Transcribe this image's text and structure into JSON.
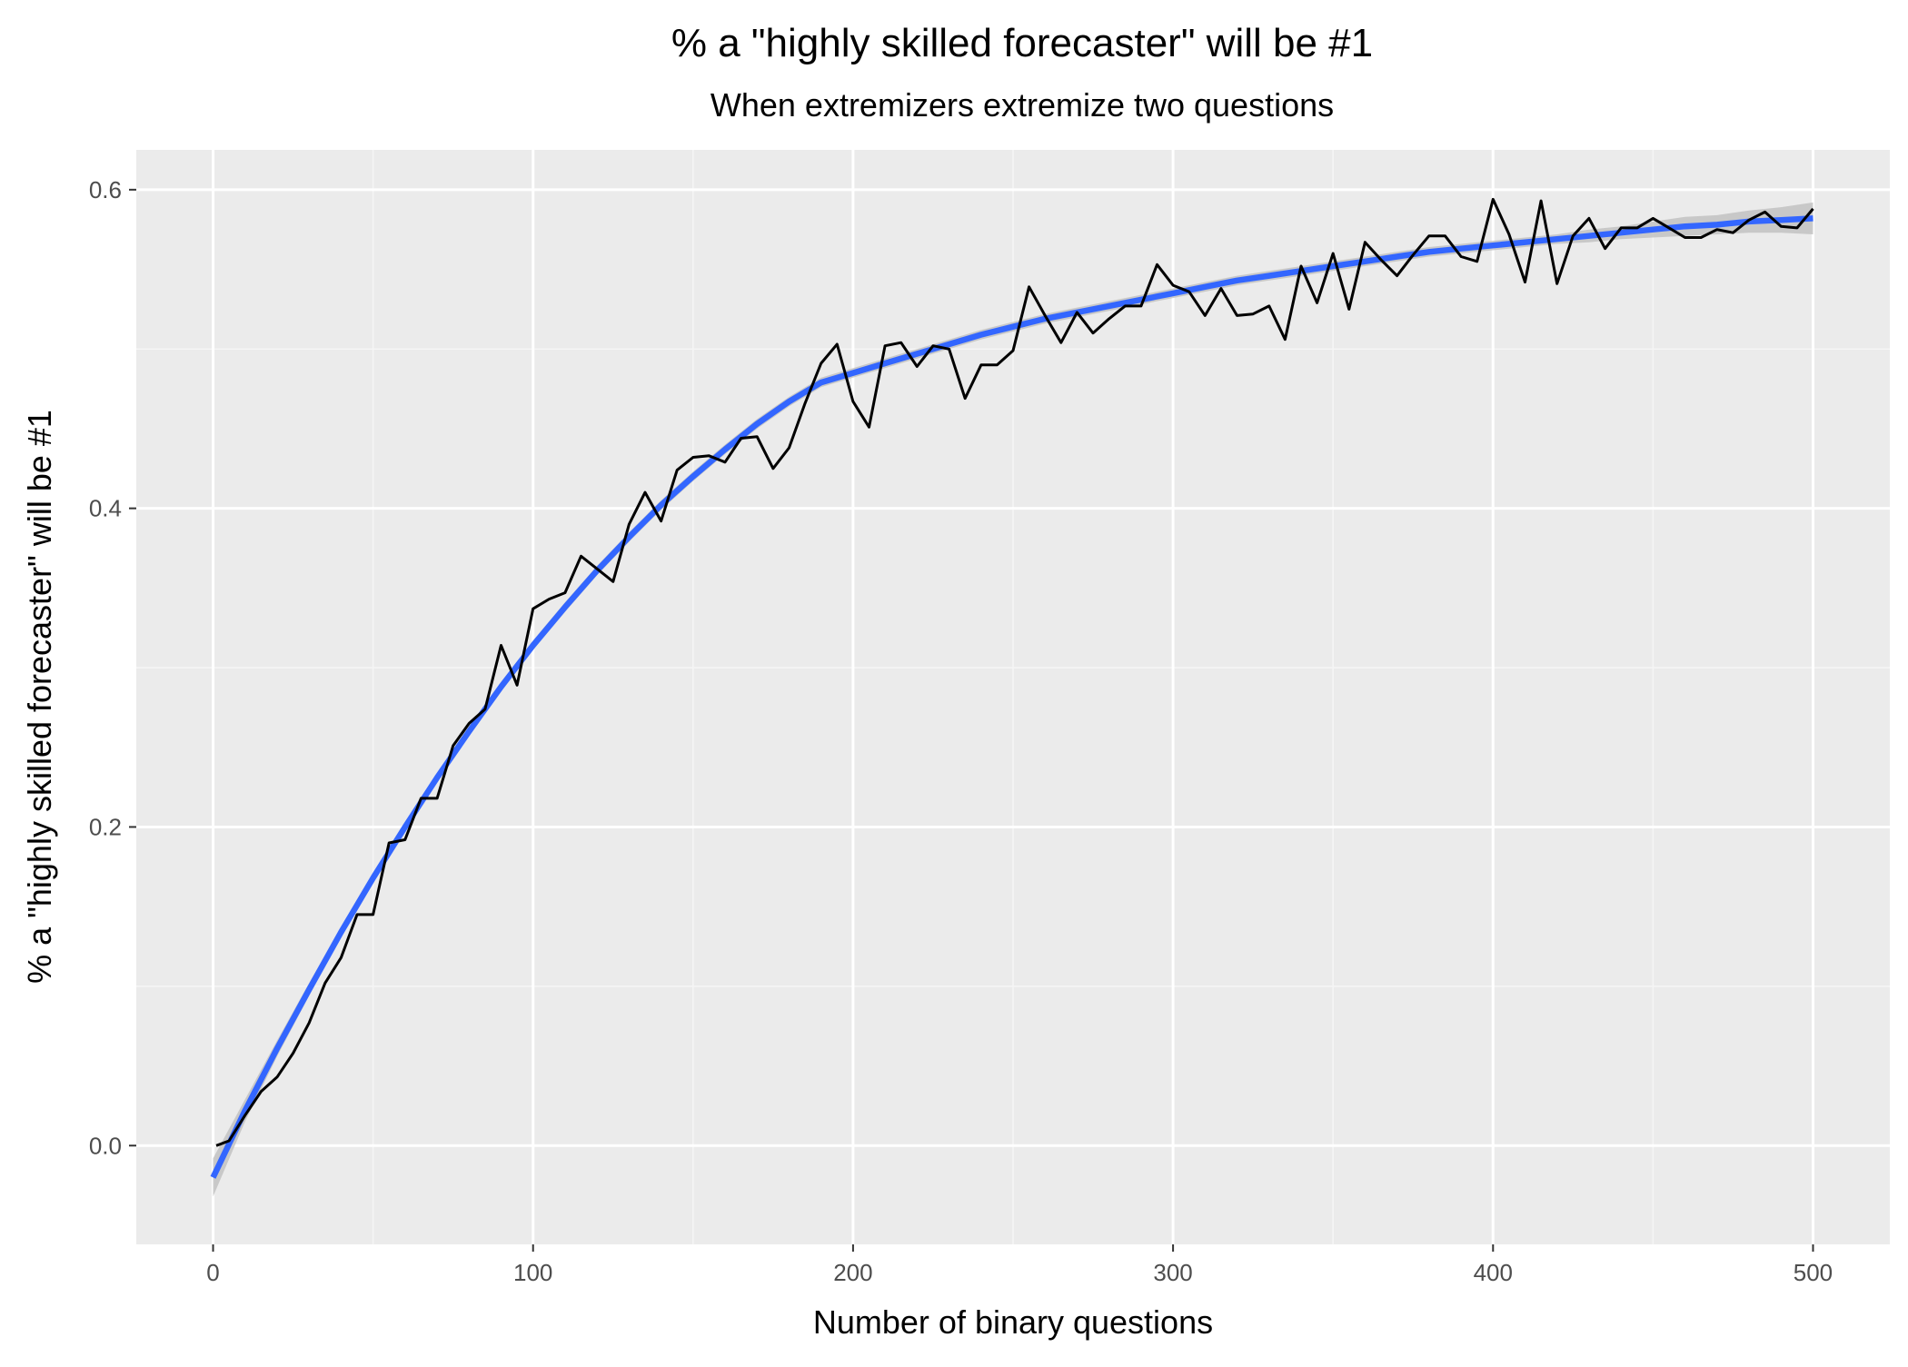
{
  "chart_data": {
    "type": "line",
    "title": "% a \"highly skilled forecaster\" will be #1",
    "subtitle": "When extremizers extremize two questions",
    "xlabel": "Number of binary questions",
    "ylabel": "% a \"highly skilled forecaster\" will be #1",
    "xlim": [
      -24,
      524
    ],
    "ylim": [
      -0.062,
      0.625
    ],
    "x_ticks": [
      0,
      100,
      200,
      300,
      400,
      500
    ],
    "x_tick_labels": [
      "0",
      "100",
      "200",
      "300",
      "400",
      "500"
    ],
    "y_ticks": [
      0.0,
      0.2,
      0.4,
      0.6
    ],
    "y_tick_labels": [
      "0.0",
      "0.2",
      "0.4",
      "0.6"
    ],
    "grid": true,
    "background": "#ebebeb",
    "colors": {
      "observed": "#000000",
      "smooth": "#3366ff",
      "ribbon": "#bfbfbf"
    },
    "series": [
      {
        "style": "observed-line",
        "x": [
          1,
          5,
          10,
          15,
          20,
          25,
          30,
          35,
          40,
          45,
          50,
          55,
          60,
          65,
          70,
          75,
          80,
          85,
          90,
          95,
          100,
          105,
          110,
          115,
          120,
          125,
          130,
          135,
          140,
          145,
          150,
          155,
          160,
          165,
          170,
          175,
          180,
          185,
          190,
          195,
          200,
          205,
          210,
          215,
          220,
          225,
          230,
          235,
          240,
          245,
          250,
          255,
          260,
          265,
          270,
          275,
          280,
          285,
          290,
          295,
          300,
          305,
          310,
          315,
          320,
          325,
          330,
          335,
          340,
          345,
          350,
          355,
          360,
          365,
          370,
          375,
          380,
          385,
          390,
          395,
          400,
          405,
          410,
          415,
          420,
          425,
          430,
          435,
          440,
          445,
          450,
          455,
          460,
          465,
          470,
          475,
          480,
          485,
          490,
          495,
          500
        ],
        "y": [
          0.0,
          0.003,
          0.019,
          0.034,
          0.043,
          0.058,
          0.077,
          0.102,
          0.118,
          0.145,
          0.145,
          0.19,
          0.192,
          0.218,
          0.218,
          0.251,
          0.265,
          0.274,
          0.314,
          0.289,
          0.337,
          0.343,
          0.347,
          0.37,
          0.362,
          0.354,
          0.39,
          0.41,
          0.392,
          0.424,
          0.432,
          0.433,
          0.429,
          0.444,
          0.445,
          0.425,
          0.438,
          0.466,
          0.491,
          0.503,
          0.467,
          0.451,
          0.502,
          0.504,
          0.489,
          0.502,
          0.5,
          0.469,
          0.49,
          0.49,
          0.499,
          0.539,
          0.521,
          0.504,
          0.523,
          0.51,
          0.519,
          0.527,
          0.527,
          0.553,
          0.54,
          0.536,
          0.521,
          0.538,
          0.521,
          0.522,
          0.527,
          0.506,
          0.552,
          0.529,
          0.56,
          0.525,
          0.567,
          0.556,
          0.546,
          0.559,
          0.571,
          0.571,
          0.558,
          0.555,
          0.594,
          0.572,
          0.542,
          0.593,
          0.541,
          0.571,
          0.582,
          0.563,
          0.576,
          0.576,
          0.582,
          0.576,
          0.57,
          0.57,
          0.575,
          0.573,
          0.581,
          0.586,
          0.577,
          0.576,
          0.588
        ]
      },
      {
        "style": "smooth-fit",
        "x": [
          0,
          10,
          20,
          30,
          40,
          50,
          60,
          70,
          80,
          90,
          100,
          110,
          120,
          130,
          140,
          150,
          160,
          170,
          180,
          190,
          200,
          210,
          220,
          230,
          240,
          250,
          260,
          270,
          280,
          290,
          300,
          310,
          320,
          330,
          340,
          350,
          360,
          370,
          380,
          390,
          400,
          410,
          420,
          430,
          440,
          450,
          460,
          470,
          480,
          490,
          500
        ],
        "y": [
          -0.02,
          0.022,
          0.061,
          0.098,
          0.134,
          0.168,
          0.2,
          0.231,
          0.26,
          0.288,
          0.314,
          0.338,
          0.361,
          0.382,
          0.402,
          0.42,
          0.437,
          0.453,
          0.467,
          0.479,
          0.485,
          0.491,
          0.497,
          0.503,
          0.509,
          0.514,
          0.519,
          0.523,
          0.527,
          0.531,
          0.535,
          0.539,
          0.543,
          0.546,
          0.549,
          0.552,
          0.555,
          0.558,
          0.561,
          0.563,
          0.565,
          0.567,
          0.569,
          0.571,
          0.573,
          0.575,
          0.577,
          0.578,
          0.58,
          0.581,
          0.582
        ],
        "se": [
          0.012,
          0.007,
          0.005,
          0.004,
          0.003,
          0.003,
          0.003,
          0.003,
          0.003,
          0.003,
          0.003,
          0.003,
          0.003,
          0.003,
          0.003,
          0.003,
          0.003,
          0.003,
          0.003,
          0.003,
          0.003,
          0.003,
          0.003,
          0.003,
          0.003,
          0.003,
          0.003,
          0.003,
          0.003,
          0.003,
          0.003,
          0.003,
          0.003,
          0.003,
          0.003,
          0.003,
          0.003,
          0.003,
          0.003,
          0.003,
          0.003,
          0.003,
          0.003,
          0.004,
          0.004,
          0.005,
          0.006,
          0.006,
          0.007,
          0.008,
          0.01
        ]
      }
    ]
  }
}
